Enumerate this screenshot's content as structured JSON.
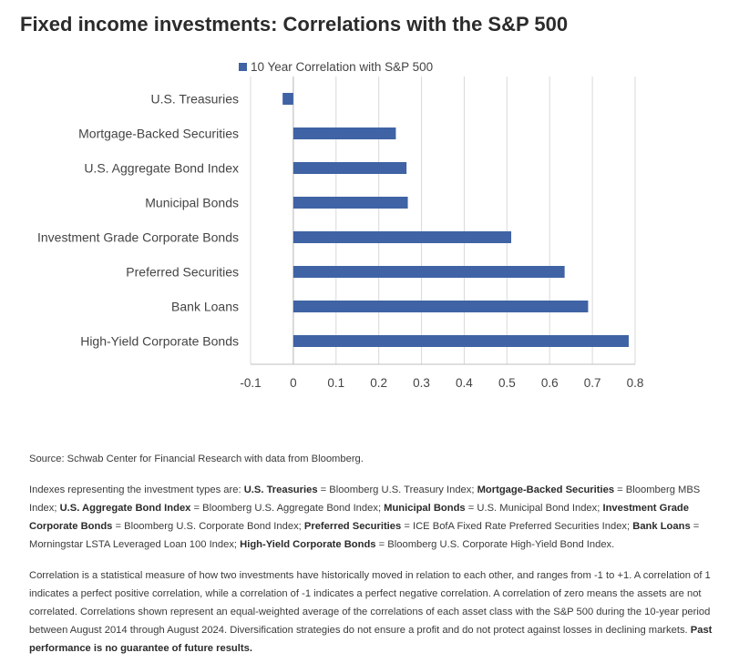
{
  "title": "Fixed income investments: Correlations with the S&P 500",
  "chart_data": {
    "type": "bar",
    "orientation": "horizontal",
    "categories": [
      "U.S. Treasuries",
      "Mortgage-Backed Securities",
      "U.S. Aggregate Bond Index",
      "Municipal Bonds",
      "Investment Grade Corporate Bonds",
      "Preferred Securities",
      "Bank Loans",
      "High-Yield Corporate Bonds"
    ],
    "series": [
      {
        "name": "10 Year Correlation with S&P 500",
        "values": [
          -0.025,
          0.24,
          0.265,
          0.268,
          0.51,
          0.635,
          0.69,
          0.785
        ]
      }
    ],
    "xlim": [
      -0.1,
      0.8
    ],
    "ticks": [
      "-0.1",
      "0",
      "0.1",
      "0.2",
      "0.3",
      "0.4",
      "0.5",
      "0.6",
      "0.7",
      "0.8"
    ],
    "tick_values": [
      -0.1,
      0,
      0.1,
      0.2,
      0.3,
      0.4,
      0.5,
      0.6,
      0.7,
      0.8
    ],
    "legend_position": "top",
    "grid": "vertical",
    "color": "#3f63a4"
  },
  "notes": {
    "source": "Source: Schwab Center for Financial Research with data from Bloomberg.",
    "indexes_intro": "Indexes representing the investment types are: ",
    "indexes": [
      {
        "name": "U.S. Treasuries",
        "desc": " = Bloomberg U.S. Treasury Index; "
      },
      {
        "name": "Mortgage-Backed Securities",
        "desc": " = Bloomberg MBS Index; "
      },
      {
        "name": "U.S. Aggregate Bond Index",
        "desc": " = Bloomberg U.S. Aggregate Bond Index; "
      },
      {
        "name": "Municipal Bonds",
        "desc": " = U.S. Municipal Bond Index; "
      },
      {
        "name": "Investment Grade Corporate Bonds",
        "desc": " = Bloomberg U.S. Corporate Bond Index; "
      },
      {
        "name": "Preferred Securities",
        "desc": " = ICE BofA Fixed Rate Preferred Securities Index; "
      },
      {
        "name": "Bank Loans",
        "desc": " = Morningstar LSTA Leveraged Loan 100 Index; "
      },
      {
        "name": "High-Yield Corporate Bonds",
        "desc": " = Bloomberg U.S. Corporate High-Yield Bond Index."
      }
    ],
    "correlation_text": "Correlation is a statistical measure of how two investments have historically moved in relation to each other, and ranges from -1 to +1. A correlation of 1 indicates a perfect positive correlation, while a correlation of -1 indicates a perfect negative correlation. A correlation of zero means the assets are not correlated. Correlations shown represent an equal-weighted average of the correlations of each asset class with the S&P 500 during the 10-year period between August 2014 through August 2024. Diversification strategies do not ensure a profit and do not protect against losses in declining markets. ",
    "disclaimer": "Past performance is no guarantee of future results."
  }
}
